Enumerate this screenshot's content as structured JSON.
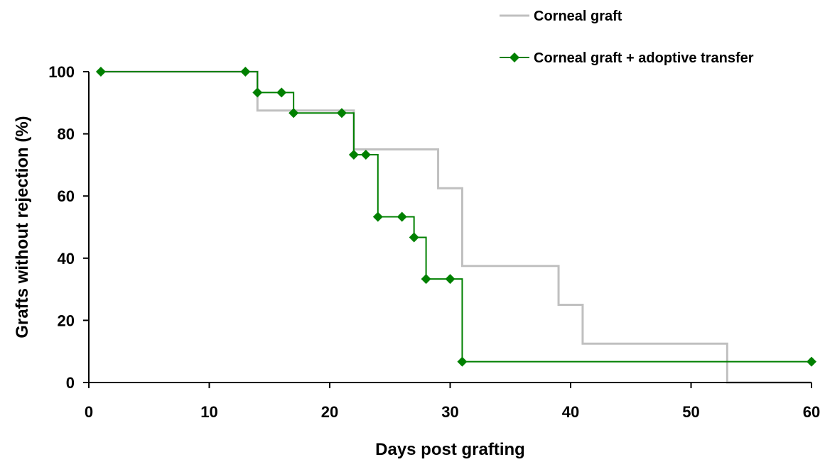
{
  "chart_data": {
    "type": "line",
    "xlabel": "Days post grafting",
    "ylabel": "Grafts without rejection (%)",
    "xlim": [
      0,
      60
    ],
    "ylim": [
      0,
      100
    ],
    "xticks": [
      0,
      10,
      20,
      30,
      40,
      50,
      60
    ],
    "yticks": [
      0,
      20,
      40,
      60,
      80,
      100
    ],
    "grid": false,
    "legend_position": "top-right",
    "series": [
      {
        "name": "Corneal graft",
        "color": "#c0c0c0",
        "marker": "none",
        "step": true,
        "x": [
          1,
          13,
          14,
          21,
          22,
          28,
          29,
          30,
          31,
          38,
          39,
          40,
          41,
          52,
          53,
          60
        ],
        "y": [
          100,
          100,
          87.5,
          87.5,
          75,
          75,
          62.5,
          62.5,
          37.5,
          37.5,
          25,
          25,
          12.5,
          12.5,
          0,
          0
        ]
      },
      {
        "name": "Corneal graft + adoptive transfer",
        "color": "#008000",
        "marker": "diamond",
        "step": true,
        "x": [
          1,
          13,
          14,
          16,
          17,
          21,
          22,
          23,
          24,
          26,
          27,
          28,
          30,
          31,
          60
        ],
        "y": [
          100,
          100,
          93.3,
          93.3,
          86.7,
          86.7,
          73.3,
          73.3,
          53.3,
          53.3,
          46.7,
          33.3,
          33.3,
          6.7,
          6.7
        ]
      }
    ]
  }
}
